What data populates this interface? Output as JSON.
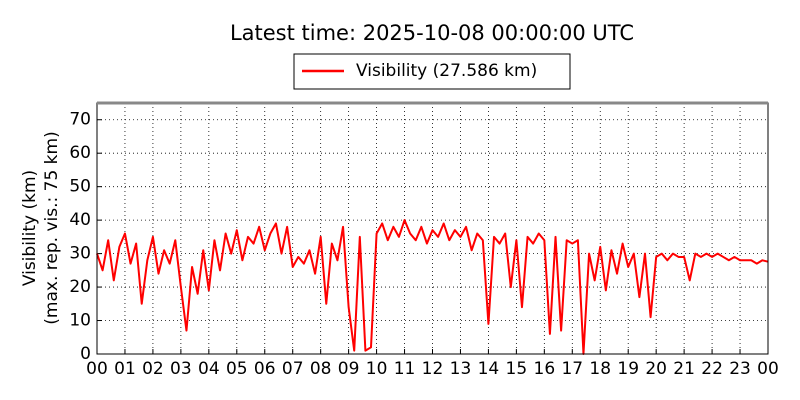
{
  "chart_data": {
    "type": "line",
    "title": "Latest time: 2025-10-08 00:00:00 UTC",
    "ylabel": [
      "Visibility (km)",
      "(max. rep. vis.: 75 km)"
    ],
    "x": [
      0,
      0.2,
      0.4,
      0.6,
      0.8,
      1,
      1.2,
      1.4,
      1.6,
      1.8,
      2,
      2.2,
      2.4,
      2.6,
      2.8,
      3,
      3.2,
      3.4,
      3.6,
      3.8,
      4,
      4.2,
      4.4,
      4.6,
      4.8,
      5,
      5.2,
      5.4,
      5.6,
      5.8,
      6,
      6.2,
      6.4,
      6.6,
      6.8,
      7,
      7.2,
      7.4,
      7.6,
      7.8,
      8,
      8.2,
      8.4,
      8.6,
      8.8,
      9,
      9.2,
      9.4,
      9.6,
      9.8,
      10,
      10.2,
      10.4,
      10.6,
      10.8,
      11,
      11.2,
      11.4,
      11.6,
      11.8,
      12,
      12.2,
      12.4,
      12.6,
      12.8,
      13,
      13.2,
      13.4,
      13.6,
      13.8,
      14,
      14.2,
      14.4,
      14.6,
      14.8,
      15,
      15.2,
      15.4,
      15.6,
      15.8,
      16,
      16.2,
      16.4,
      16.6,
      16.8,
      17,
      17.2,
      17.4,
      17.6,
      17.8,
      18,
      18.2,
      18.4,
      18.6,
      18.8,
      19,
      19.2,
      19.4,
      19.6,
      19.8,
      20,
      20.2,
      20.4,
      20.6,
      20.8,
      21,
      21.2,
      21.4,
      21.6,
      21.8,
      22,
      22.2,
      22.4,
      22.6,
      22.8,
      23,
      23.2,
      23.4,
      23.6,
      23.8,
      24
    ],
    "series": [
      {
        "name": "Visibility (27.586 km)",
        "color": "#ff0000",
        "values": [
          30,
          25,
          34,
          22,
          32,
          36,
          27,
          33,
          15,
          28,
          35,
          24,
          31,
          27,
          34,
          20,
          7,
          26,
          18,
          31,
          19,
          34,
          25,
          36,
          30,
          37,
          28,
          35,
          33,
          38,
          31,
          36,
          39,
          30,
          38,
          26,
          29,
          27,
          31,
          24,
          35,
          15,
          33,
          28,
          38,
          14,
          1,
          35,
          1,
          2,
          36,
          39,
          34,
          38,
          35,
          40,
          36,
          34,
          38,
          33,
          37,
          35,
          39,
          34,
          37,
          35,
          38,
          31,
          36,
          34,
          9,
          35,
          33,
          36,
          20,
          34,
          14,
          35,
          33,
          36,
          34,
          6,
          35,
          7,
          34,
          33,
          34,
          0,
          30,
          22,
          32,
          19,
          31,
          24,
          33,
          26,
          30,
          17,
          30,
          11,
          29,
          30,
          28,
          30,
          29,
          29,
          22,
          30,
          29,
          30,
          29,
          30,
          29,
          28,
          29,
          28,
          28,
          28,
          27,
          28,
          27.586
        ]
      }
    ],
    "xlim": [
      0,
      24
    ],
    "ylim": [
      0,
      75
    ],
    "xticks": [
      {
        "value": 0,
        "label": "00"
      },
      {
        "value": 1,
        "label": "01"
      },
      {
        "value": 2,
        "label": "02"
      },
      {
        "value": 3,
        "label": "03"
      },
      {
        "value": 4,
        "label": "04"
      },
      {
        "value": 5,
        "label": "05"
      },
      {
        "value": 6,
        "label": "06"
      },
      {
        "value": 7,
        "label": "07"
      },
      {
        "value": 8,
        "label": "08"
      },
      {
        "value": 9,
        "label": "09"
      },
      10,
      11,
      12,
      13,
      14,
      15,
      16,
      17,
      18,
      19,
      20,
      21,
      22,
      23,
      {
        "value": 24,
        "label": "00"
      }
    ],
    "yticks": [
      0,
      10,
      20,
      30,
      40,
      50,
      60,
      70
    ],
    "grid": true
  }
}
